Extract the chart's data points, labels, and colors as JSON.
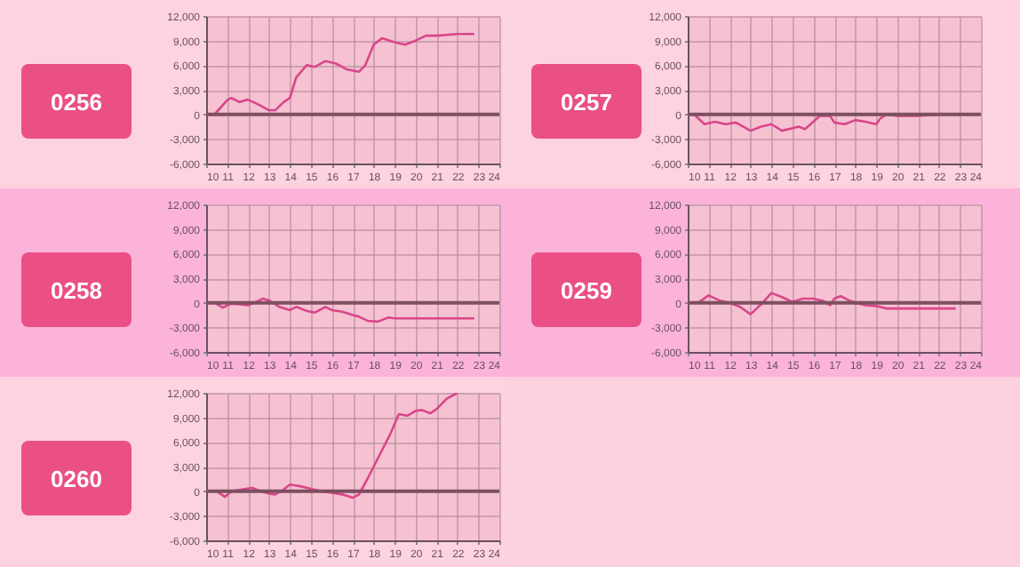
{
  "chart_data": [
    {
      "type": "line",
      "title": "0256",
      "xlim": [
        10,
        24
      ],
      "xticks": [
        10,
        11,
        12,
        13,
        14,
        15,
        16,
        17,
        18,
        19,
        20,
        21,
        22,
        23,
        24
      ],
      "ylim": [
        -6000,
        12000
      ],
      "yticks": [
        {
          "value": -6000,
          "label": "-6,000"
        },
        {
          "value": -3000,
          "label": "-3,000"
        },
        {
          "value": 0,
          "label": "0"
        },
        {
          "value": 3000,
          "label": "3,000"
        },
        {
          "value": 6000,
          "label": "6,000"
        },
        {
          "value": 9000,
          "label": "9,000"
        },
        {
          "value": 12000,
          "label": "12,000"
        }
      ],
      "grid": true,
      "ref_lines": [
        {
          "axis": "y",
          "value": 0,
          "color": "#7d4f60"
        }
      ],
      "series": [
        {
          "color": "#d9468a",
          "x": [
            10.4,
            11.0,
            11.2,
            11.6,
            12.0,
            12.5,
            13.0,
            13.3,
            13.7,
            14.0,
            14.3,
            14.8,
            15.2,
            15.7,
            16.2,
            16.7,
            17.3,
            17.6,
            18.0,
            18.4,
            19.0,
            19.5,
            20.0,
            20.5,
            21.0,
            21.5,
            22.0,
            22.8
          ],
          "values": [
            0,
            1700,
            2000,
            1500,
            1800,
            1200,
            500,
            500,
            1500,
            2000,
            4500,
            6000,
            5800,
            6500,
            6200,
            5500,
            5200,
            6000,
            8500,
            9300,
            8800,
            8500,
            9000,
            9600,
            9600,
            9700,
            9800,
            9800
          ]
        }
      ]
    },
    {
      "type": "line",
      "title": "0257",
      "xlim": [
        10,
        24
      ],
      "xticks": [
        10,
        11,
        12,
        13,
        14,
        15,
        16,
        17,
        18,
        19,
        20,
        21,
        22,
        23,
        24
      ],
      "ylim": [
        -6000,
        12000
      ],
      "yticks": [
        {
          "value": -6000,
          "label": "-6,000"
        },
        {
          "value": -3000,
          "label": "-3,000"
        },
        {
          "value": 0,
          "label": "0"
        },
        {
          "value": 3000,
          "label": "3,000"
        },
        {
          "value": 6000,
          "label": "6,000"
        },
        {
          "value": 9000,
          "label": "9,000"
        },
        {
          "value": 12000,
          "label": "12,000"
        }
      ],
      "grid": true,
      "ref_lines": [
        {
          "axis": "y",
          "value": 0,
          "color": "#7d4f60"
        }
      ],
      "series": [
        {
          "color": "#d9468a",
          "x": [
            10.3,
            10.8,
            11.3,
            11.8,
            12.3,
            13.0,
            13.5,
            14.0,
            14.5,
            15.0,
            15.3,
            15.6,
            16.0,
            16.3,
            16.8,
            17.0,
            17.5,
            18.0,
            18.5,
            19.0,
            19.2,
            19.5,
            20.0,
            21.0,
            22.0,
            22.8
          ],
          "values": [
            0,
            -1200,
            -900,
            -1200,
            -1000,
            -2000,
            -1500,
            -1200,
            -2000,
            -1700,
            -1500,
            -1800,
            -900,
            -200,
            -200,
            -1000,
            -1200,
            -700,
            -900,
            -1200,
            -500,
            0,
            -200,
            -200,
            0,
            0
          ]
        }
      ]
    },
    {
      "type": "line",
      "title": "0258",
      "xlim": [
        10,
        24
      ],
      "xticks": [
        10,
        11,
        12,
        13,
        14,
        15,
        16,
        17,
        18,
        19,
        20,
        21,
        22,
        23,
        24
      ],
      "ylim": [
        -6000,
        12000
      ],
      "yticks": [
        {
          "value": -6000,
          "label": "-6,000"
        },
        {
          "value": -3000,
          "label": "-3,000"
        },
        {
          "value": 0,
          "label": "0"
        },
        {
          "value": 3000,
          "label": "3,000"
        },
        {
          "value": 6000,
          "label": "6,000"
        },
        {
          "value": 9000,
          "label": "9,000"
        },
        {
          "value": 12000,
          "label": "12,000"
        }
      ],
      "grid": true,
      "ref_lines": [
        {
          "axis": "y",
          "value": 0,
          "color": "#7d4f60"
        }
      ],
      "series": [
        {
          "color": "#d9468a",
          "x": [
            10.4,
            10.8,
            11.2,
            11.6,
            12.0,
            12.3,
            12.7,
            13.0,
            13.5,
            14.0,
            14.3,
            14.8,
            15.2,
            15.7,
            16.0,
            16.5,
            17.0,
            17.3,
            17.7,
            18.2,
            18.7,
            19.0,
            20.0,
            21.0,
            22.8
          ],
          "values": [
            0,
            -600,
            -100,
            -200,
            -300,
            0,
            500,
            300,
            -500,
            -900,
            -500,
            -1000,
            -1200,
            -500,
            -900,
            -1100,
            -1500,
            -1700,
            -2200,
            -2300,
            -1800,
            -1900,
            -1900,
            -1900,
            -1900
          ]
        }
      ]
    },
    {
      "type": "line",
      "title": "0259",
      "xlim": [
        10,
        24
      ],
      "xticks": [
        10,
        11,
        12,
        13,
        14,
        15,
        16,
        17,
        18,
        19,
        20,
        21,
        22,
        23,
        24
      ],
      "ylim": [
        -6000,
        12000
      ],
      "yticks": [
        {
          "value": -6000,
          "label": "-6,000"
        },
        {
          "value": -3000,
          "label": "-3,000"
        },
        {
          "value": 0,
          "label": "0"
        },
        {
          "value": 3000,
          "label": "3,000"
        },
        {
          "value": 6000,
          "label": "6,000"
        },
        {
          "value": 9000,
          "label": "9,000"
        },
        {
          "value": 12000,
          "label": "12,000"
        }
      ],
      "grid": true,
      "ref_lines": [
        {
          "axis": "y",
          "value": 0,
          "color": "#7d4f60"
        }
      ],
      "series": [
        {
          "color": "#d9468a",
          "x": [
            10.0,
            10.5,
            11.0,
            11.5,
            12.0,
            12.5,
            13.0,
            13.5,
            14.0,
            14.5,
            15.0,
            15.5,
            16.0,
            16.5,
            16.8,
            17.0,
            17.3,
            17.7,
            18.0,
            18.5,
            19.0,
            19.5,
            20.0,
            21.0,
            22.8
          ],
          "values": [
            0,
            0,
            900,
            300,
            0,
            -500,
            -1400,
            -200,
            1200,
            700,
            100,
            500,
            500,
            200,
            -300,
            500,
            800,
            300,
            0,
            -300,
            -400,
            -700,
            -700,
            -700,
            -700
          ]
        }
      ]
    },
    {
      "type": "line",
      "title": "0260",
      "xlim": [
        10,
        24
      ],
      "xticks": [
        10,
        11,
        12,
        13,
        14,
        15,
        16,
        17,
        18,
        19,
        20,
        21,
        22,
        23,
        24
      ],
      "ylim": [
        -6000,
        12000
      ],
      "yticks": [
        {
          "value": -6000,
          "label": "-6,000"
        },
        {
          "value": -3000,
          "label": "-3,000"
        },
        {
          "value": 0,
          "label": "0"
        },
        {
          "value": 3000,
          "label": "3,000"
        },
        {
          "value": 6000,
          "label": "6,000"
        },
        {
          "value": 9000,
          "label": "9,000"
        },
        {
          "value": 12000,
          "label": "12,000"
        }
      ],
      "grid": true,
      "ref_lines": [
        {
          "axis": "y",
          "value": 0,
          "color": "#7d4f60"
        }
      ],
      "series": [
        {
          "color": "#d9468a",
          "x": [
            10.0,
            10.5,
            10.9,
            11.2,
            11.7,
            12.2,
            12.5,
            13.0,
            13.3,
            13.7,
            14.0,
            14.5,
            15.0,
            15.5,
            16.0,
            16.5,
            17.0,
            17.3,
            17.7,
            18.0,
            18.5,
            18.8,
            19.2,
            19.6,
            20.0,
            20.3,
            20.7,
            21.0,
            21.5,
            22.0
          ],
          "values": [
            0,
            0,
            -700,
            0,
            200,
            400,
            100,
            -300,
            -400,
            200,
            800,
            600,
            300,
            0,
            -200,
            -400,
            -800,
            -400,
            1500,
            3000,
            5500,
            7000,
            9400,
            9200,
            9800,
            9900,
            9500,
            10000,
            11300,
            12000
          ]
        }
      ]
    }
  ]
}
